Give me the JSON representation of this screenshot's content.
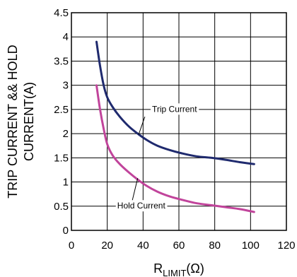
{
  "chart_data": {
    "type": "line",
    "xlabel_main": "R",
    "xlabel_sub": "LIMIT",
    "xlabel_unit": "(Ω)",
    "ylabel_line1": "TRIP CURRENT && HOLD",
    "ylabel_line2": "CURRENT(A)",
    "xlim": [
      0,
      120
    ],
    "ylim": [
      0,
      4.5
    ],
    "xticks": [
      0,
      20,
      40,
      60,
      80,
      100,
      120
    ],
    "yticks": [
      0,
      0.5,
      1,
      1.5,
      2,
      2.5,
      3,
      3.5,
      4,
      4.5
    ],
    "xtick_labels": [
      "0",
      "20",
      "40",
      "60",
      "80",
      "100",
      "120"
    ],
    "ytick_labels": [
      "0",
      "0.5",
      "1",
      "1.5",
      "2",
      "2.5",
      "3",
      "3.5",
      "4",
      "4.5"
    ],
    "grid": true,
    "series": [
      {
        "name": "Trip Current",
        "color": "#1f2a6e",
        "x": [
          14,
          16,
          18,
          20,
          23,
          27,
          32,
          37,
          42,
          48,
          55,
          62,
          70,
          78,
          86,
          94,
          102
        ],
        "y": [
          3.9,
          3.4,
          3.0,
          2.75,
          2.55,
          2.35,
          2.15,
          2.0,
          1.87,
          1.75,
          1.66,
          1.59,
          1.53,
          1.5,
          1.46,
          1.41,
          1.37
        ]
      },
      {
        "name": "Hold Current",
        "color": "#c1449b",
        "x": [
          14,
          16,
          18,
          20,
          23,
          27,
          32,
          37,
          42,
          48,
          55,
          62,
          70,
          78,
          86,
          94,
          102
        ],
        "y": [
          3.0,
          2.5,
          2.1,
          1.78,
          1.55,
          1.37,
          1.2,
          1.05,
          0.92,
          0.8,
          0.7,
          0.63,
          0.56,
          0.52,
          0.48,
          0.44,
          0.38
        ]
      }
    ],
    "annotations": [
      {
        "text": "Trip Current",
        "series": "Trip Current"
      },
      {
        "text": "Hold Current",
        "series": "Hold Current"
      }
    ]
  }
}
